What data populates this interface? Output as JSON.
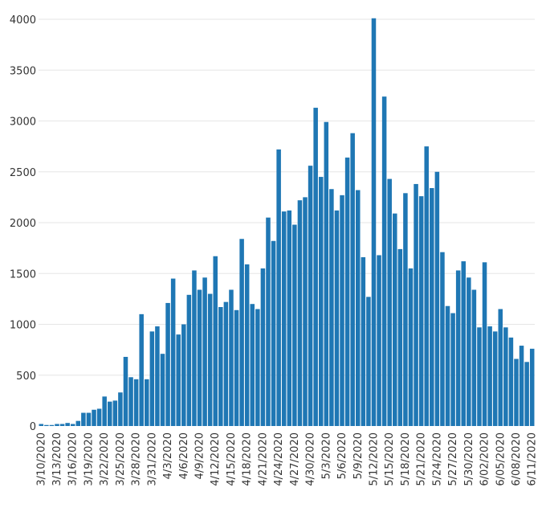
{
  "chart_data": {
    "type": "bar",
    "color": "#1f77b4",
    "grid": true,
    "ylim": [
      0,
      4000
    ],
    "yticks": [
      0,
      500,
      1000,
      1500,
      2000,
      2500,
      3000,
      3500,
      4000
    ],
    "xtick_labels": [
      "3/10/2020",
      "3/13/2020",
      "3/16/2020",
      "3/19/2020",
      "3/22/2020",
      "3/25/2020",
      "3/28/2020",
      "3/31/2020",
      "4/3/2020",
      "4/6/2020",
      "4/9/2020",
      "4/12/2020",
      "4/15/2020",
      "4/18/2020",
      "4/21/2020",
      "4/24/2020",
      "4/27/2020",
      "4/30/2020",
      "5/3/2020",
      "5/6/2020",
      "5/9/2020",
      "5/12/2020",
      "5/15/2020",
      "5/18/2020",
      "5/21/2020",
      "5/24/2020",
      "5/27/2020",
      "5/30/2020",
      "6/02/2020",
      "6/05/2020",
      "6/08/2020",
      "6/11/2020"
    ],
    "start_date": "2020-03-10",
    "values": [
      20,
      10,
      10,
      20,
      20,
      30,
      20,
      50,
      130,
      130,
      160,
      170,
      290,
      240,
      250,
      330,
      680,
      480,
      460,
      1100,
      460,
      930,
      980,
      710,
      1210,
      1450,
      900,
      1000,
      1290,
      1530,
      1340,
      1460,
      1300,
      1670,
      1170,
      1220,
      1340,
      1140,
      1840,
      1590,
      1200,
      1150,
      1550,
      2050,
      1820,
      2720,
      2110,
      2120,
      1980,
      2220,
      2250,
      2560,
      3130,
      2450,
      2990,
      2330,
      2120,
      2270,
      2640,
      2880,
      2320,
      1660,
      1270,
      4010,
      1680,
      3240,
      2430,
      2090,
      1740,
      2290,
      1550,
      2380,
      2260,
      2750,
      2340,
      2500,
      1710,
      1180,
      1110,
      1530,
      1620,
      1460,
      1340,
      970,
      1610,
      980,
      930,
      1150,
      970,
      870,
      660,
      790,
      630,
      760
    ]
  }
}
